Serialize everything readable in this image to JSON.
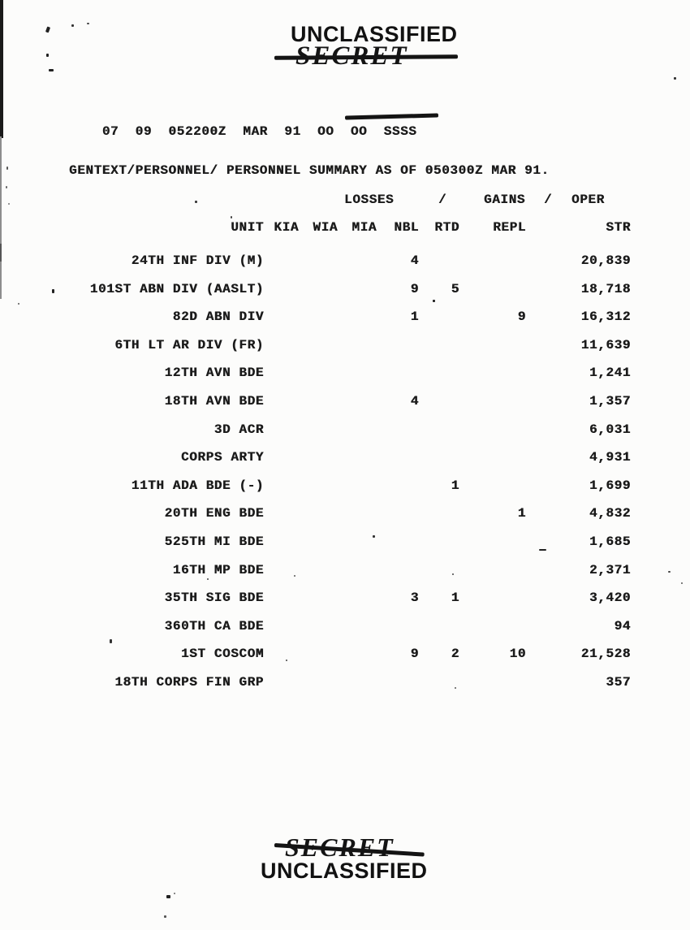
{
  "stamps": {
    "top_unclassified": "UNCLASSIFIED",
    "top_secret": "SECRET",
    "bottom_secret": "SECRET",
    "bottom_unclassified": "UNCLASSIFIED"
  },
  "message_header": {
    "prefix": "07  09  052200Z  MAR  91  OO  OO  ",
    "redacted": "SSSS"
  },
  "gentext": "GENTEXT/PERSONNEL/ PERSONNEL SUMMARY AS OF 050300Z MAR 91.",
  "table": {
    "group_header": {
      "losses": "LOSSES",
      "slash1": "/",
      "gains": "GAINS",
      "slash2": "/",
      "oper": "OPER"
    },
    "columns": {
      "unit": "UNIT",
      "kia": "KIA",
      "wia": "WIA",
      "mia": "MIA",
      "nbl": "NBL",
      "rtd": "RTD",
      "repl": "REPL",
      "str": "STR"
    },
    "rows": [
      {
        "unit": "24TH INF DIV (M)",
        "kia": "",
        "wia": "",
        "mia": "",
        "nbl": "4",
        "rtd": "",
        "repl": "",
        "str": "20,839"
      },
      {
        "unit": "101ST ABN DIV (AASLT)",
        "kia": "",
        "wia": "",
        "mia": "",
        "nbl": "9",
        "rtd": "5",
        "repl": "",
        "str": "18,718"
      },
      {
        "unit": "82D ABN DIV",
        "kia": "",
        "wia": "",
        "mia": "",
        "nbl": "1",
        "rtd": "",
        "repl": "9",
        "str": "16,312"
      },
      {
        "unit": "6TH LT AR DIV (FR)",
        "kia": "",
        "wia": "",
        "mia": "",
        "nbl": "",
        "rtd": "",
        "repl": "",
        "str": "11,639"
      },
      {
        "unit": "12TH AVN BDE",
        "kia": "",
        "wia": "",
        "mia": "",
        "nbl": "",
        "rtd": "",
        "repl": "",
        "str": "1,241"
      },
      {
        "unit": "18TH AVN BDE",
        "kia": "",
        "wia": "",
        "mia": "",
        "nbl": "4",
        "rtd": "",
        "repl": "",
        "str": "1,357"
      },
      {
        "unit": "3D ACR",
        "kia": "",
        "wia": "",
        "mia": "",
        "nbl": "",
        "rtd": "",
        "repl": "",
        "str": "6,031"
      },
      {
        "unit": "CORPS ARTY",
        "kia": "",
        "wia": "",
        "mia": "",
        "nbl": "",
        "rtd": "",
        "repl": "",
        "str": "4,931"
      },
      {
        "unit": "11TH ADA BDE (-)",
        "kia": "",
        "wia": "",
        "mia": "",
        "nbl": "",
        "rtd": "1",
        "repl": "",
        "str": "1,699"
      },
      {
        "unit": "20TH ENG BDE",
        "kia": "",
        "wia": "",
        "mia": "",
        "nbl": "",
        "rtd": "",
        "repl": "1",
        "str": "4,832"
      },
      {
        "unit": "525TH MI BDE",
        "kia": "",
        "wia": "",
        "mia": "",
        "nbl": "",
        "rtd": "",
        "repl": "",
        "str": "1,685"
      },
      {
        "unit": "16TH MP BDE",
        "kia": "",
        "wia": "",
        "mia": "",
        "nbl": "",
        "rtd": "",
        "repl": "",
        "str": "2,371"
      },
      {
        "unit": "35TH SIG BDE",
        "kia": "",
        "wia": "",
        "mia": "",
        "nbl": "3",
        "rtd": "1",
        "repl": "",
        "str": "3,420"
      },
      {
        "unit": "360TH CA BDE",
        "kia": "",
        "wia": "",
        "mia": "",
        "nbl": "",
        "rtd": "",
        "repl": "",
        "str": "94"
      },
      {
        "unit": "1ST COSCOM",
        "kia": "",
        "wia": "",
        "mia": "",
        "nbl": "9",
        "rtd": "2",
        "repl": "10",
        "str": "21,528"
      },
      {
        "unit": "18TH CORPS FIN GRP",
        "kia": "",
        "wia": "",
        "mia": "",
        "nbl": "",
        "rtd": "",
        "repl": "",
        "str": "357"
      }
    ]
  }
}
